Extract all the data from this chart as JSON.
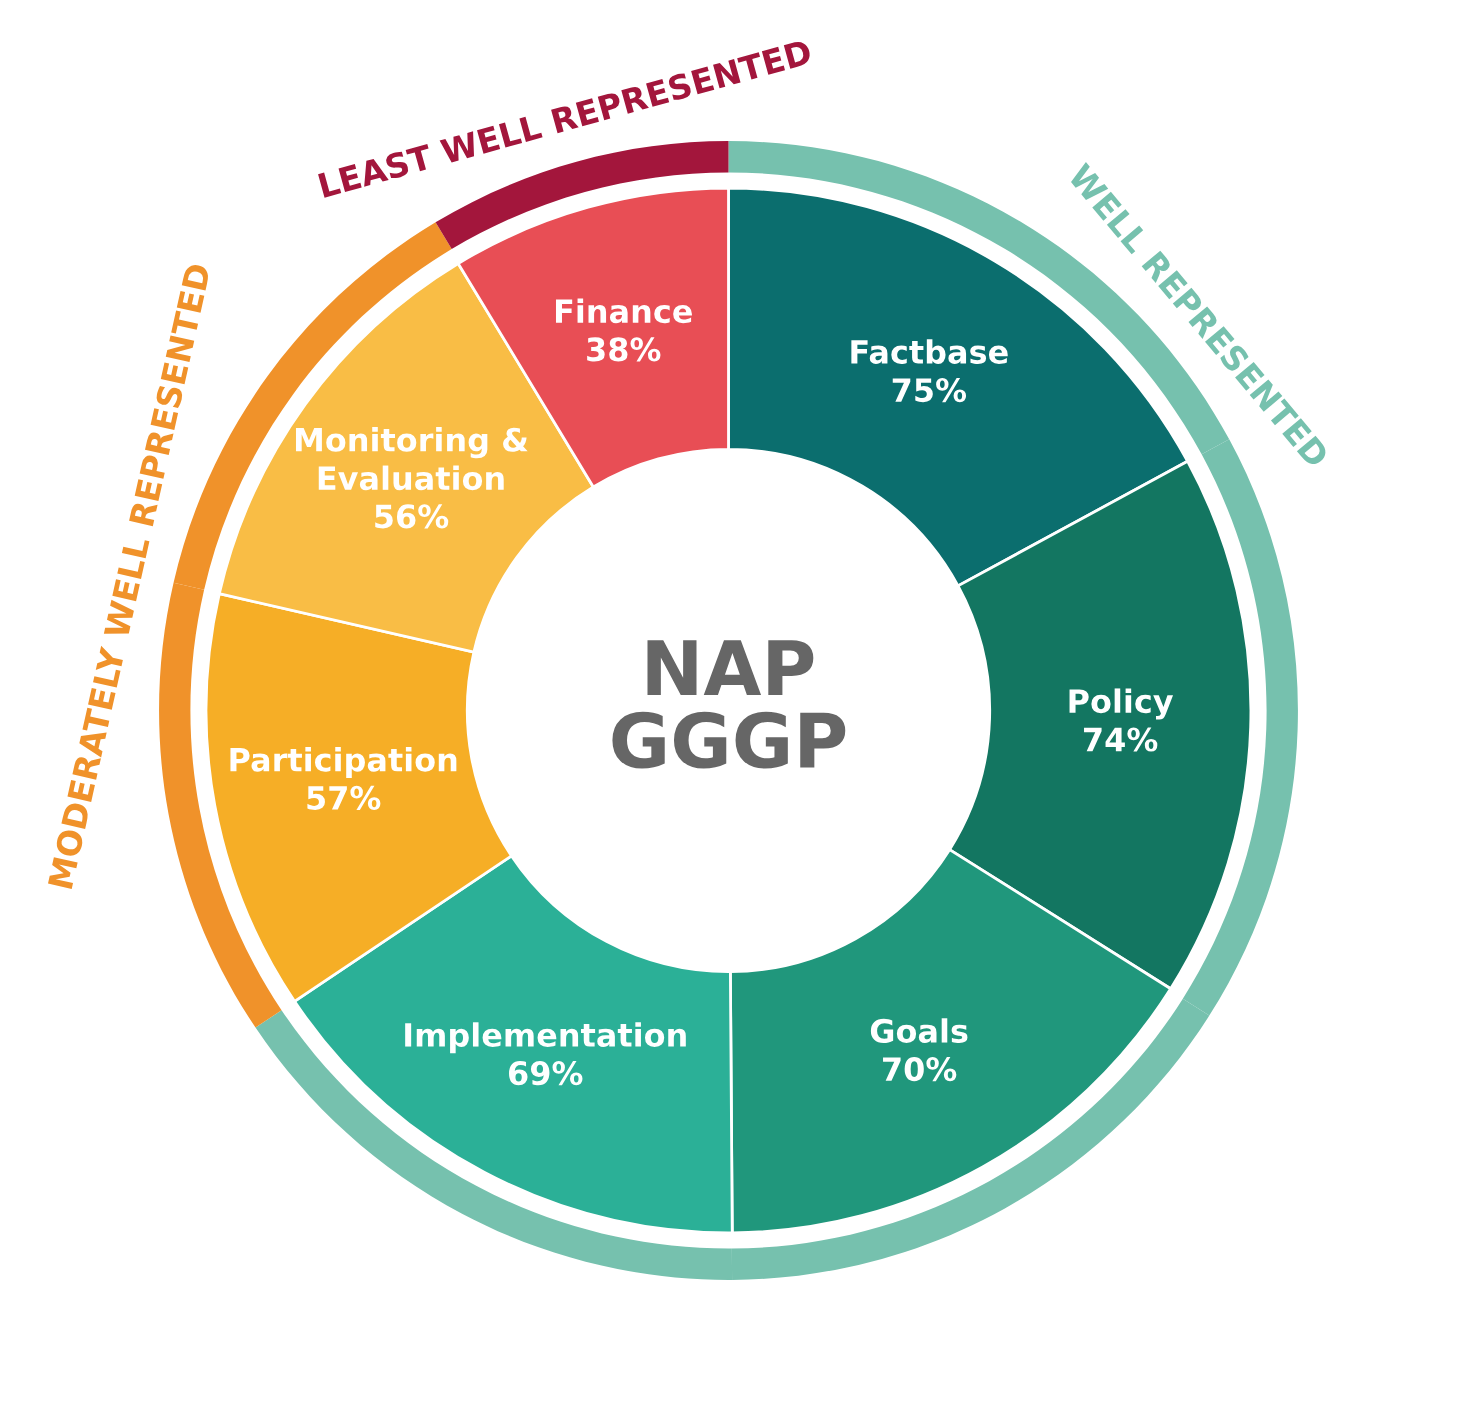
{
  "chart_data": {
    "type": "donut",
    "title": "NAP\nGGGP",
    "categories": [
      "Factbase",
      "Policy",
      "Goals",
      "Implementation",
      "Participation",
      "Monitoring &\nEvaluation",
      "Finance"
    ],
    "series": [
      {
        "values": [
          17.1,
          16.9,
          15.9,
          15.7,
          13.0,
          12.8,
          8.6
        ],
        "colors": [
          "#76c1ae",
          "#76c1ae",
          "#76c1ae",
          "#76c1ae",
          "#f0922a",
          "#f0922a",
          "#a3163c"
        ]
      },
      {
        "values": [
          75,
          74,
          70,
          69,
          57,
          56,
          38
        ],
        "value_labels": [
          "75%",
          "74%",
          "70%",
          "69%",
          "57%",
          "56%",
          "38%"
        ],
        "colors": [
          "#0b6e6e",
          "#137661",
          "#20977c",
          "#2bb097",
          "#f6ae26",
          "#f9bd45",
          "#e84e55"
        ]
      }
    ],
    "annotations": [
      "WELL REPRESENTED",
      "MODERATELY WELL REPRESENTED",
      "LEAST WELL REPRESENTED"
    ]
  }
}
